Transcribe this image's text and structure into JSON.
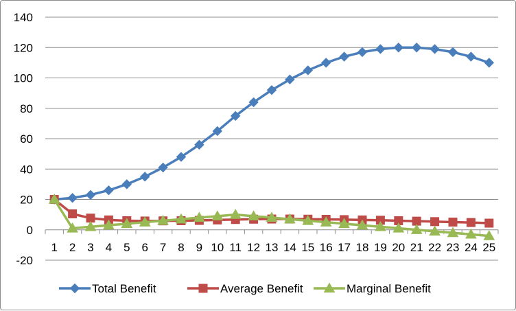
{
  "chart_data": {
    "type": "line",
    "title": "",
    "xlabel": "",
    "ylabel": "",
    "x": [
      1,
      2,
      3,
      4,
      5,
      6,
      7,
      8,
      9,
      10,
      11,
      12,
      13,
      14,
      15,
      16,
      17,
      18,
      19,
      20,
      21,
      22,
      23,
      24,
      25
    ],
    "ylim": [
      -20,
      140
    ],
    "yticks": [
      -20,
      0,
      20,
      40,
      60,
      80,
      100,
      120,
      140
    ],
    "grid": true,
    "legend_position": "bottom",
    "series": [
      {
        "name": "Total Benefit",
        "color": "#4a7ebb",
        "marker": "diamond",
        "values": [
          20,
          21,
          23,
          26,
          30,
          35,
          41,
          48,
          56,
          65,
          75,
          84,
          92,
          99,
          105,
          110,
          114,
          117,
          119,
          120,
          120,
          119,
          117,
          114,
          110
        ]
      },
      {
        "name": "Average Benefit",
        "color": "#be4b48",
        "marker": "square",
        "values": [
          20,
          10.5,
          7.7,
          6.5,
          6,
          5.8,
          5.9,
          6,
          6.2,
          6.5,
          6.8,
          7,
          7.1,
          7.1,
          7,
          6.9,
          6.7,
          6.5,
          6.3,
          6,
          5.7,
          5.4,
          5.1,
          4.8,
          4.4
        ]
      },
      {
        "name": "Marginal Benefit",
        "color": "#98b954",
        "marker": "triangle",
        "values": [
          20,
          1,
          2,
          3,
          4,
          5,
          6,
          7,
          8,
          9,
          10,
          9,
          8,
          7,
          6,
          5,
          4,
          3,
          2,
          1,
          0,
          -1,
          -2,
          -3,
          -4
        ]
      }
    ]
  }
}
